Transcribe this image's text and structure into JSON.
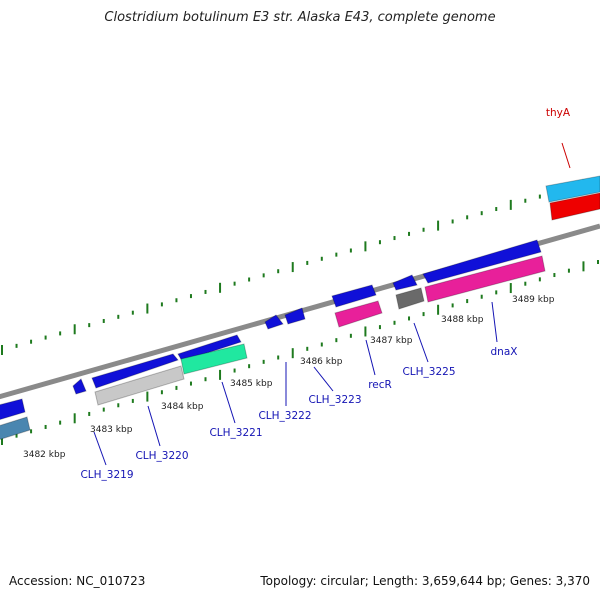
{
  "title": "Clostridium botulinum E3 str. Alaska E43, complete genome",
  "footer": {
    "accession": "Accession: NC_010723",
    "topology": "Topology: circular; Length: 3,659,644 bp; Genes: 3,370"
  },
  "colors": {
    "backbone": "#8a8a8a",
    "tick": "#1e7a1e",
    "gene_label": "#1414b4",
    "highlight_label": "#cc0000",
    "kbp_label": "#222222"
  },
  "kbp_labels": [
    "3482 kbp",
    "3483 kbp",
    "3484 kbp",
    "3485 kbp",
    "3486 kbp",
    "3487 kbp",
    "3488 kbp",
    "3489 kbp"
  ],
  "genes": [
    {
      "label": "thyA",
      "color": "#cc0000"
    },
    {
      "label": "CLH_3219",
      "color": "#1414b4"
    },
    {
      "label": "CLH_3220",
      "color": "#1414b4"
    },
    {
      "label": "CLH_3221",
      "color": "#1414b4"
    },
    {
      "label": "CLH_3222",
      "color": "#1414b4"
    },
    {
      "label": "CLH_3223",
      "color": "#1414b4"
    },
    {
      "label": "recR",
      "color": "#1414b4"
    },
    {
      "label": "CLH_3225",
      "color": "#1414b4"
    },
    {
      "label": "dnaX",
      "color": "#1414b4"
    }
  ],
  "features": [
    {
      "name": "blue-gene-arrow",
      "color": "#1010d8"
    },
    {
      "name": "blue-gene-arrow",
      "color": "#1010d8"
    },
    {
      "name": "blue-gene-arrow",
      "color": "#1010d8"
    },
    {
      "name": "blue-gene-arrow",
      "color": "#1010d8"
    },
    {
      "name": "blue-gene-arrow",
      "color": "#1010d8"
    },
    {
      "name": "blue-gene-arrow",
      "color": "#1010d8"
    },
    {
      "name": "blue-gene-arrow",
      "color": "#1010d8"
    },
    {
      "name": "blue-gene-arrow",
      "color": "#1010d8"
    },
    {
      "name": "blue-gene-arrow",
      "color": "#1010d8"
    },
    {
      "name": "cyan-gene-block",
      "color": "#22b8ee"
    },
    {
      "name": "red-gene-block",
      "color": "#ee0000"
    },
    {
      "name": "pink-gene-block",
      "color": "#e8209a"
    },
    {
      "name": "pink-gene-block",
      "color": "#e8209a"
    },
    {
      "name": "gray-gene-block",
      "color": "#c8c8c8"
    },
    {
      "name": "teal-gene-block",
      "color": "#20e8a0"
    },
    {
      "name": "dark-gray-gene-block",
      "color": "#6a6a6a"
    },
    {
      "name": "steel-blue-gene-block",
      "color": "#4a86b0"
    }
  ]
}
